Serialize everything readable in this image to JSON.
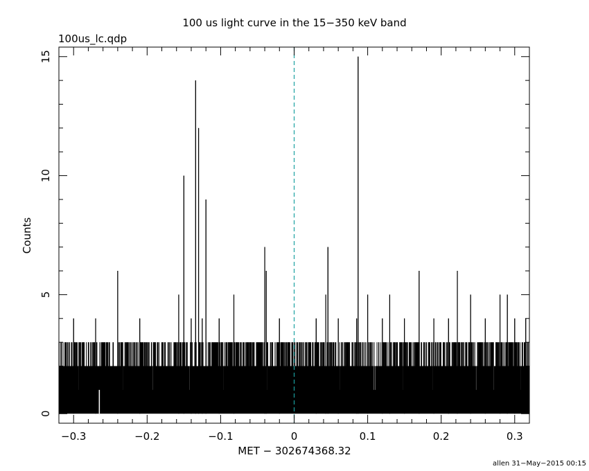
{
  "chart_data": {
    "type": "bar",
    "title": "100 us light curve in the 15−350 keV band",
    "subtitle": "100us_lc.qdp",
    "xlabel": "MET − 302674368.32",
    "ylabel": "Counts",
    "footer": "allen 31−May−2015 00:15",
    "xlim": [
      -0.32,
      0.32
    ],
    "ylim": [
      -0.4,
      15.4
    ],
    "x_ticks": [
      -0.3,
      -0.2,
      -0.1,
      0,
      0.1,
      0.2,
      0.3
    ],
    "x_tick_labels": [
      "−0.3",
      "−0.2",
      "−0.1",
      "0",
      "0.1",
      "0.2",
      "0.3"
    ],
    "y_ticks": [
      0,
      5,
      10,
      15
    ],
    "y_tick_labels": [
      "0",
      "5",
      "10",
      "15"
    ],
    "bin_width": 0.0001,
    "reference_line": {
      "x": 0,
      "style": "dashed",
      "color": "#1aa0a0"
    },
    "colors": {
      "bars": "#000000",
      "reference": "#1aa0a0"
    },
    "grid": false,
    "legend": "none",
    "notable_bins": [
      {
        "x": -0.3,
        "y": 4
      },
      {
        "x": -0.292,
        "y": 3
      },
      {
        "x": -0.27,
        "y": 4
      },
      {
        "x": -0.265,
        "y": 0
      },
      {
        "x": -0.24,
        "y": 6
      },
      {
        "x": -0.235,
        "y": 3
      },
      {
        "x": -0.21,
        "y": 4
      },
      {
        "x": -0.19,
        "y": 3
      },
      {
        "x": -0.157,
        "y": 5
      },
      {
        "x": -0.15,
        "y": 10
      },
      {
        "x": -0.14,
        "y": 4
      },
      {
        "x": -0.134,
        "y": 14
      },
      {
        "x": -0.13,
        "y": 12
      },
      {
        "x": -0.125,
        "y": 4
      },
      {
        "x": -0.12,
        "y": 9
      },
      {
        "x": -0.11,
        "y": 3
      },
      {
        "x": -0.102,
        "y": 4
      },
      {
        "x": -0.082,
        "y": 5
      },
      {
        "x": -0.06,
        "y": 3
      },
      {
        "x": -0.04,
        "y": 7
      },
      {
        "x": -0.038,
        "y": 6
      },
      {
        "x": -0.02,
        "y": 4
      },
      {
        "x": 0.01,
        "y": 3
      },
      {
        "x": 0.03,
        "y": 4
      },
      {
        "x": 0.043,
        "y": 5
      },
      {
        "x": 0.046,
        "y": 7
      },
      {
        "x": 0.06,
        "y": 4
      },
      {
        "x": 0.075,
        "y": 3
      },
      {
        "x": 0.085,
        "y": 4
      },
      {
        "x": 0.087,
        "y": 15
      },
      {
        "x": 0.1,
        "y": 5
      },
      {
        "x": 0.12,
        "y": 4
      },
      {
        "x": 0.13,
        "y": 5
      },
      {
        "x": 0.15,
        "y": 4
      },
      {
        "x": 0.17,
        "y": 6
      },
      {
        "x": 0.19,
        "y": 4
      },
      {
        "x": 0.21,
        "y": 4
      },
      {
        "x": 0.222,
        "y": 6
      },
      {
        "x": 0.24,
        "y": 5
      },
      {
        "x": 0.26,
        "y": 4
      },
      {
        "x": 0.28,
        "y": 5
      },
      {
        "x": 0.29,
        "y": 5
      },
      {
        "x": 0.3,
        "y": 4
      },
      {
        "x": 0.315,
        "y": 4
      }
    ]
  }
}
